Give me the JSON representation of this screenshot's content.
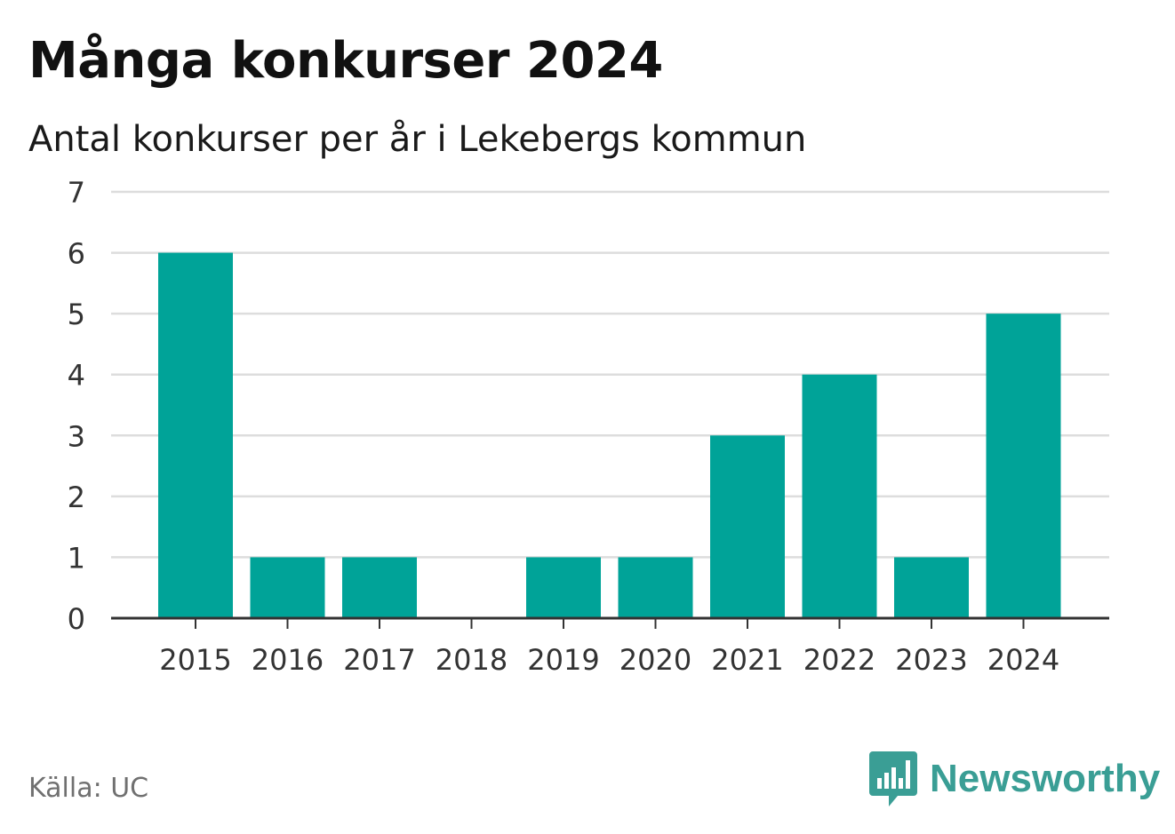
{
  "header": {
    "title": "Många konkurser 2024",
    "subtitle": "Antal konkurser per år i Lekebergs kommun"
  },
  "footer": {
    "source": "Källa: UC",
    "brand": "Newsworthy",
    "brand_icon": "chart-bubble-icon"
  },
  "colors": {
    "bar": "#00a398",
    "grid": "#dddddd",
    "axis": "#333333",
    "brand": "#3a9e95"
  },
  "chart_data": {
    "type": "bar",
    "categories": [
      "2015",
      "2016",
      "2017",
      "2018",
      "2019",
      "2020",
      "2021",
      "2022",
      "2023",
      "2024"
    ],
    "values": [
      6,
      1,
      1,
      0,
      1,
      1,
      3,
      4,
      1,
      5
    ],
    "ylim": [
      0,
      7
    ],
    "yticks": [
      0,
      1,
      2,
      3,
      4,
      5,
      6,
      7
    ],
    "grid": true,
    "legend": "none"
  }
}
